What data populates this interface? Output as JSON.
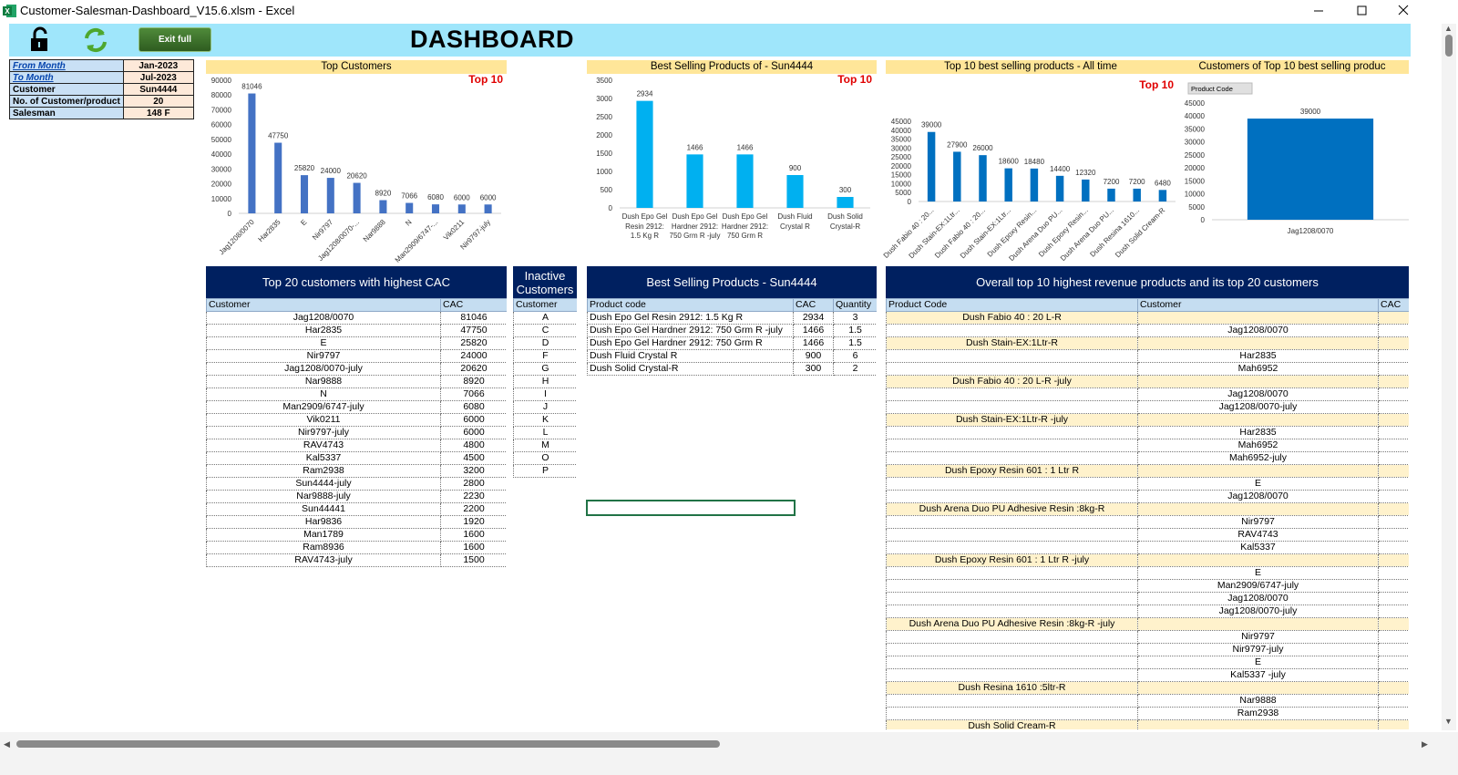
{
  "window": {
    "title": "Customer-Salesman-Dashboard_V15.6.xlsm - Excel"
  },
  "toolbar": {
    "button": "Exit full",
    "title": "DASHBOARD"
  },
  "filters": [
    {
      "label": "From Month",
      "value": "Jan-2023"
    },
    {
      "label": "To Month",
      "value": "Jul-2023"
    },
    {
      "label": "Customer",
      "value": "Sun4444"
    },
    {
      "label": "No. of Customer/product",
      "value": 20
    },
    {
      "label": "Salesman",
      "value": "148 F"
    }
  ],
  "chart_data": [
    {
      "type": "bar",
      "title": "Top Customers",
      "badge": "Top 10",
      "color": "#4472c4",
      "categories": [
        "Jag1208/0070",
        "Har2835",
        "E",
        "Nir9797",
        "Jag1208/0070-...",
        "Nar9888",
        "N",
        "Man2909/6747-...",
        "Vik0211",
        "Nir9797-july"
      ],
      "values": [
        81046,
        47750,
        25820,
        24000,
        20620,
        8920,
        7066,
        6080,
        6000,
        6000
      ],
      "ylim": [
        0,
        90000
      ],
      "yticks": [
        0,
        10000,
        20000,
        30000,
        40000,
        50000,
        60000,
        70000,
        80000,
        90000
      ]
    },
    {
      "type": "bar",
      "title": "Best Selling Products of - Sun4444",
      "badge": "Top 10",
      "color": "#00b0f0",
      "categories": [
        "Dush Epo Gel Resin 2912: 1.5 Kg R",
        "Dush Epo Gel Hardner 2912: 750 Grm R -july",
        "Dush Epo Gel Hardner 2912: 750 Grm R",
        "Dush Fluid Crystal R",
        "Dush Solid Crystal-R"
      ],
      "values": [
        2934,
        1466,
        1466,
        900,
        300
      ],
      "ylim": [
        0,
        3500
      ],
      "yticks": [
        0,
        500,
        1000,
        1500,
        2000,
        2500,
        3000,
        3500
      ]
    },
    {
      "type": "bar",
      "title": "Top 10 best selling products - All time",
      "badge": "Top 10",
      "color": "#0070c0",
      "categories": [
        "Dush Fabio 40 : 20...",
        "Dush Stain-EX:1Ltr...",
        "Dush Fabio 40 : 20...",
        "Dush Stain-EX:1Ltr...",
        "Dush Epoxy Resin...",
        "Dush Arena Duo PU...",
        "Dush Epoxy Resin...",
        "Dush Arena Duo PU...",
        "Dush Resina 1610...",
        "Dush Solid Cream-R"
      ],
      "values": [
        39000,
        27900,
        26000,
        18600,
        18480,
        14400,
        12320,
        7200,
        7200,
        6480
      ],
      "ylim": [
        0,
        45000
      ],
      "yticks": [
        0,
        5000,
        10000,
        15000,
        20000,
        25000,
        30000,
        35000,
        40000,
        45000
      ]
    },
    {
      "type": "bar",
      "title": "Customers of Top 10 best selling produc",
      "filter_button": "Product Code",
      "color": "#0070c0",
      "categories": [
        "Jag1208/0070"
      ],
      "values": [
        39000
      ],
      "ylim": [
        0,
        45000
      ],
      "yticks": [
        0,
        5000,
        10000,
        15000,
        20000,
        25000,
        30000,
        35000,
        40000,
        45000
      ]
    }
  ],
  "tables": {
    "top_customers": {
      "title": "Top 20 customers with highest CAC",
      "columns": [
        "Customer",
        "CAC"
      ],
      "rows": [
        [
          "Jag1208/0070",
          81046
        ],
        [
          "Har2835",
          47750
        ],
        [
          "E",
          25820
        ],
        [
          "Nir9797",
          24000
        ],
        [
          "Jag1208/0070-july",
          20620
        ],
        [
          "Nar9888",
          8920
        ],
        [
          "N",
          7066
        ],
        [
          "Man2909/6747-july",
          6080
        ],
        [
          "Vik0211",
          6000
        ],
        [
          "Nir9797-july",
          6000
        ],
        [
          "RAV4743",
          4800
        ],
        [
          "Kal5337",
          4500
        ],
        [
          "Ram2938",
          3200
        ],
        [
          "Sun4444-july",
          2800
        ],
        [
          "Nar9888-july",
          2230
        ],
        [
          "Sun44441",
          2200
        ],
        [
          "Har9836",
          1920
        ],
        [
          "Man1789",
          1600
        ],
        [
          "Ram8936",
          1600
        ],
        [
          "RAV4743-july",
          1500
        ]
      ]
    },
    "inactive": {
      "title": "Inactive Customers",
      "columns": [
        "Customer"
      ],
      "rows": [
        [
          "A"
        ],
        [
          "C"
        ],
        [
          "D"
        ],
        [
          "F"
        ],
        [
          "G"
        ],
        [
          "H"
        ],
        [
          "I"
        ],
        [
          "J"
        ],
        [
          "K"
        ],
        [
          "L"
        ],
        [
          "M"
        ],
        [
          "O"
        ],
        [
          "P"
        ]
      ]
    },
    "best_selling": {
      "title": "Best Selling Products - Sun4444",
      "columns": [
        "Product code",
        "CAC",
        "Quantity"
      ],
      "rows": [
        [
          "Dush Epo Gel Resin 2912: 1.5 Kg R",
          2934,
          3
        ],
        [
          "Dush Epo Gel Hardner 2912: 750 Grm R -july",
          1466,
          1.5
        ],
        [
          "Dush Epo Gel Hardner 2912: 750 Grm R",
          1466,
          1.5
        ],
        [
          "Dush Fluid Crystal R",
          900,
          6
        ],
        [
          "Dush Solid Crystal-R",
          300,
          2
        ]
      ]
    },
    "top_products": {
      "title": "Overall top 10 highest revenue products and its top 20 customers",
      "columns": [
        "Product Code",
        "Customer",
        "CAC"
      ],
      "groups": [
        {
          "product": "Dush Fabio 40 : 20 L-R",
          "customers": [
            "Jag1208/0070"
          ]
        },
        {
          "product": "Dush Stain-EX:1Ltr-R",
          "customers": [
            "Har2835",
            "Mah6952"
          ]
        },
        {
          "product": "Dush Fabio 40 : 20 L-R  -july",
          "customers": [
            "Jag1208/0070",
            "Jag1208/0070-july"
          ]
        },
        {
          "product": "Dush Stain-EX:1Ltr-R  -july",
          "customers": [
            "Har2835",
            "Mah6952",
            "Mah6952-july"
          ]
        },
        {
          "product": "Dush Epoxy Resin 601 : 1 Ltr R",
          "customers": [
            "E",
            "Jag1208/0070"
          ]
        },
        {
          "product": "Dush Arena Duo PU Adhesive Resin :8kg-R",
          "customers": [
            "Nir9797",
            "RAV4743",
            "Kal5337"
          ]
        },
        {
          "product": "Dush Epoxy Resin 601 : 1 Ltr R  -july",
          "customers": [
            "E",
            "Man2909/6747-july",
            "Jag1208/0070",
            "Jag1208/0070-july"
          ]
        },
        {
          "product": "Dush Arena Duo PU Adhesive Resin :8kg-R  -july",
          "customers": [
            "Nir9797",
            "Nir9797-july",
            "E",
            "Kal5337  -july"
          ]
        },
        {
          "product": "Dush Resina 1610 :5ltr-R",
          "customers": [
            "Nar9888",
            "Ram2938"
          ]
        },
        {
          "product": "Dush Solid Cream-R",
          "customers": []
        }
      ]
    }
  }
}
